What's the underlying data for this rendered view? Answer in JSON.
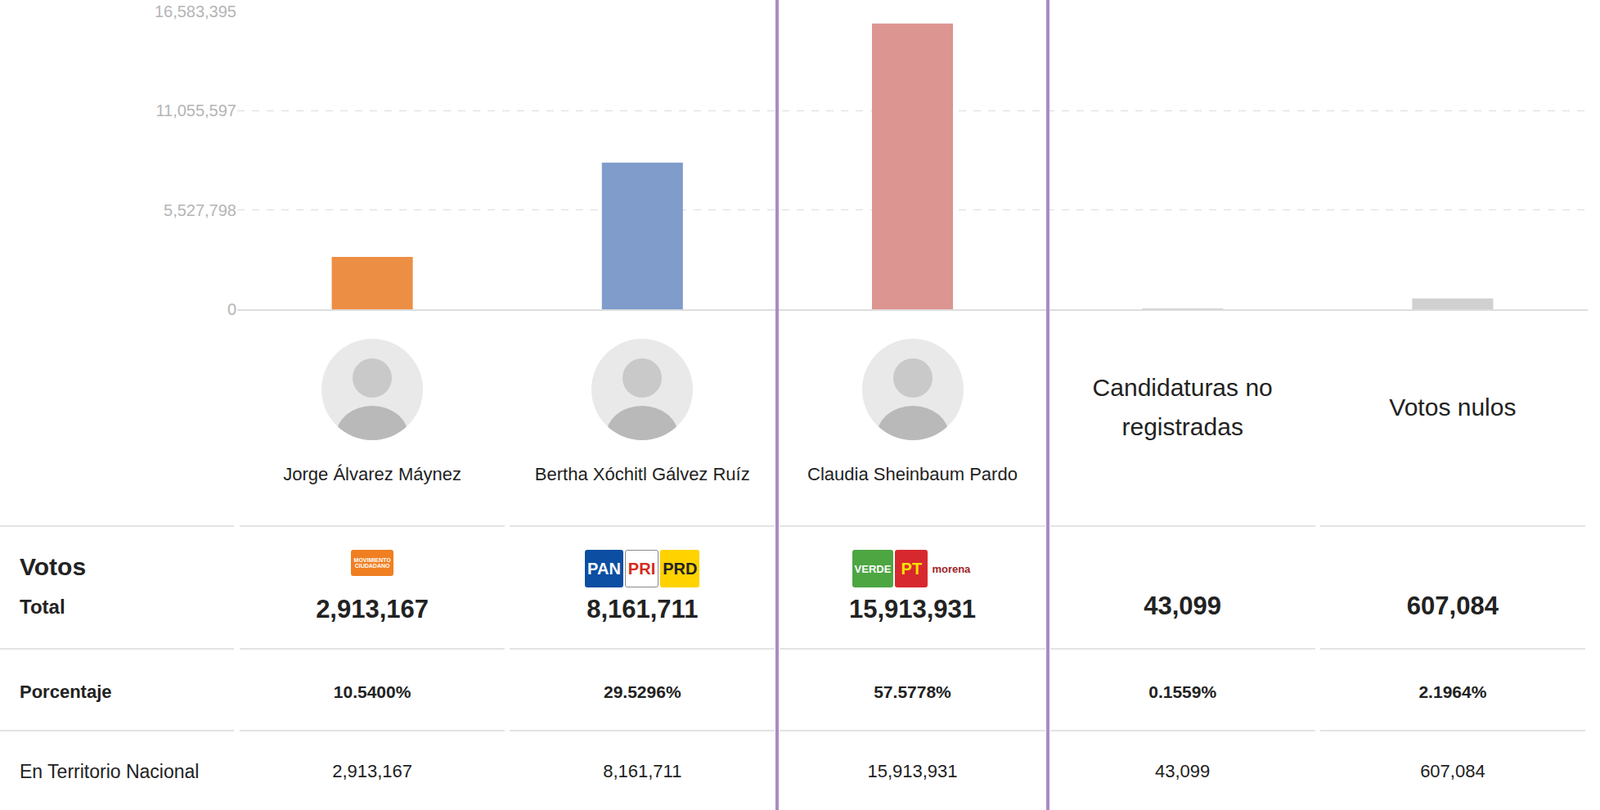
{
  "chart_data": {
    "type": "bar",
    "categories": [
      "Jorge Álvarez Máynez",
      "Bertha Xóchitl Gálvez Ruíz",
      "Claudia Sheinbaum Pardo",
      "Candidaturas no registradas",
      "Votos nulos"
    ],
    "values": [
      2913167,
      8161711,
      15913931,
      43099,
      607084
    ],
    "colors": [
      "#ED8E45",
      "#7F9CCB",
      "#DD9591",
      "#D0D0D0",
      "#D0D0D0"
    ],
    "ylim": [
      0,
      16583395
    ],
    "yticks": [
      0,
      {
        "value": 5527798,
        "label": "5,527,798"
      },
      {
        "value": 11055597,
        "label": "11,055,597"
      },
      {
        "value": 16583395,
        "label": "16,583,395"
      }
    ],
    "grid": true,
    "tick_labels": "y"
  },
  "table": {
    "highlight_column": 2,
    "columns": [
      {
        "photo": true,
        "parties": [
          {
            "label": "MOVIMIENTO CIUDADANO",
            "color": "#F07F22",
            "text_color": "#ffffff"
          }
        ]
      },
      {
        "photo": true,
        "parties": [
          {
            "label": "PAN",
            "color": "#0B4EA2",
            "text_color": "#ffffff"
          },
          {
            "label": "PRI",
            "color": "#ffffff",
            "text_color": "#D52B1E"
          },
          {
            "label": "PRD",
            "color": "#FFD200",
            "text_color": "#222222"
          }
        ]
      },
      {
        "photo": true,
        "parties": [
          {
            "label": "VERDE",
            "color": "#4DA642",
            "text_color": "#ffffff"
          },
          {
            "label": "PT",
            "color": "#D8282F",
            "text_color": "#FFE000"
          },
          {
            "label": "morena",
            "color": "#ffffff",
            "text_color": "#A0242A"
          }
        ]
      },
      {
        "photo": false,
        "parties": []
      },
      {
        "photo": false,
        "parties": []
      }
    ],
    "header_row": {
      "title": "Votos",
      "subtitle": "Total",
      "cells": [
        "2,913,167",
        "8,161,711",
        "15,913,931",
        "43,099",
        "607,084"
      ]
    },
    "rows": [
      {
        "label": "Porcentaje",
        "cells": [
          "10.5400%",
          "29.5296%",
          "57.5778%",
          "0.1559%",
          "2.1964%"
        ]
      },
      {
        "label": "En Territorio Nacional",
        "cells": [
          "2,913,167",
          "8,161,711",
          "15,913,931",
          "43,099",
          "607,084"
        ]
      }
    ]
  }
}
